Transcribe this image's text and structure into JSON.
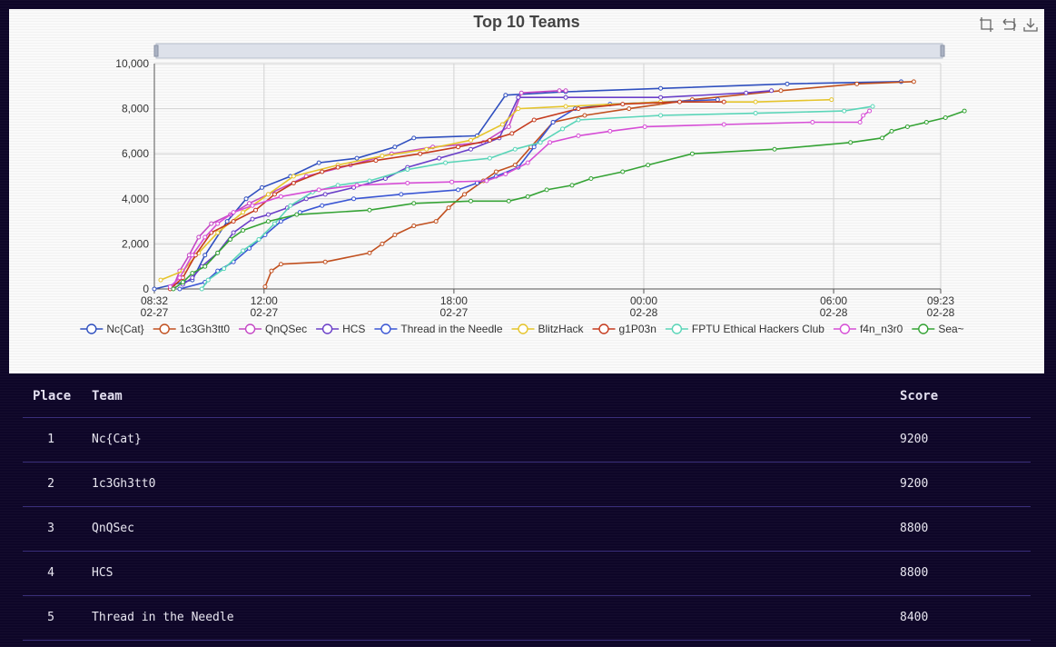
{
  "chart_data": {
    "type": "line",
    "title": "Top 10 Teams",
    "ylim": [
      0,
      10000
    ],
    "y_ticks": [
      "10,000",
      "8,000",
      "6,000",
      "4,000",
      "2,000",
      "0"
    ],
    "x_ticks": [
      {
        "time": "08:32",
        "date": "02-27"
      },
      {
        "time": "12:00",
        "date": "02-27"
      },
      {
        "time": "18:00",
        "date": "02-27"
      },
      {
        "time": "00:00",
        "date": "02-28"
      },
      {
        "time": "06:00",
        "date": "02-28"
      },
      {
        "time": "09:23",
        "date": "02-28"
      }
    ],
    "legend_position": "bottom",
    "series": [
      {
        "name": "Nc{Cat}",
        "color": "#2f4fbf",
        "values": [
          [
            0,
            0
          ],
          [
            1.2,
            400
          ],
          [
            1.6,
            1500
          ],
          [
            2.3,
            3000
          ],
          [
            2.9,
            4000
          ],
          [
            3.4,
            4500
          ],
          [
            4.3,
            5000
          ],
          [
            5.2,
            5600
          ],
          [
            6.4,
            5800
          ],
          [
            7.6,
            6300
          ],
          [
            8.2,
            6700
          ],
          [
            10.2,
            6800
          ],
          [
            11.1,
            8600
          ],
          [
            13,
            8750
          ],
          [
            16,
            8900
          ],
          [
            20,
            9100
          ],
          [
            23.6,
            9200
          ]
        ]
      },
      {
        "name": "1c3Gh3tt0",
        "color": "#c1501f",
        "values": [
          [
            3.5,
            100
          ],
          [
            3.7,
            800
          ],
          [
            4.0,
            1100
          ],
          [
            5.4,
            1200
          ],
          [
            6.8,
            1600
          ],
          [
            7.2,
            2000
          ],
          [
            7.6,
            2400
          ],
          [
            8.2,
            2800
          ],
          [
            8.9,
            3000
          ],
          [
            9.3,
            3600
          ],
          [
            9.8,
            4200
          ],
          [
            10.4,
            4800
          ],
          [
            10.8,
            5200
          ],
          [
            11.4,
            5500
          ],
          [
            11.9,
            6300
          ],
          [
            12.6,
            7400
          ],
          [
            13.6,
            7700
          ],
          [
            15,
            8000
          ],
          [
            17,
            8400
          ],
          [
            19.8,
            8800
          ],
          [
            22.2,
            9100
          ],
          [
            24.0,
            9200
          ]
        ]
      },
      {
        "name": "QnQSec",
        "color": "#c548c5",
        "values": [
          [
            0.6,
            100
          ],
          [
            0.8,
            800
          ],
          [
            1.1,
            1500
          ],
          [
            1.4,
            2300
          ],
          [
            1.8,
            2900
          ],
          [
            2.4,
            3300
          ],
          [
            3.0,
            3800
          ],
          [
            3.6,
            4200
          ],
          [
            4.8,
            5000
          ],
          [
            6.2,
            5500
          ],
          [
            7.5,
            6000
          ],
          [
            8.8,
            6300
          ],
          [
            10.4,
            6500
          ],
          [
            11.2,
            7200
          ],
          [
            11.6,
            8700
          ],
          [
            12.8,
            8800
          ],
          [
            13.0,
            8800
          ]
        ]
      },
      {
        "name": "HCS",
        "color": "#6a3fc8",
        "values": [
          [
            0.9,
            200
          ],
          [
            1.2,
            500
          ],
          [
            1.5,
            1000
          ],
          [
            2.0,
            1600
          ],
          [
            2.5,
            2500
          ],
          [
            3.1,
            3100
          ],
          [
            3.6,
            3300
          ],
          [
            4.2,
            3600
          ],
          [
            4.8,
            4000
          ],
          [
            5.4,
            4200
          ],
          [
            6.3,
            4500
          ],
          [
            7.3,
            4900
          ],
          [
            8.0,
            5400
          ],
          [
            9.0,
            5800
          ],
          [
            10.0,
            6200
          ],
          [
            10.9,
            6700
          ],
          [
            11.5,
            8500
          ],
          [
            13.0,
            8500
          ],
          [
            16,
            8500
          ],
          [
            18.7,
            8700
          ],
          [
            19.5,
            8800
          ]
        ]
      },
      {
        "name": "Thread in the Needle",
        "color": "#3a56d4",
        "values": [
          [
            0.8,
            0
          ],
          [
            1.6,
            300
          ],
          [
            2.0,
            800
          ],
          [
            2.5,
            1200
          ],
          [
            3.0,
            1800
          ],
          [
            3.5,
            2400
          ],
          [
            4.0,
            3000
          ],
          [
            4.6,
            3400
          ],
          [
            5.3,
            3700
          ],
          [
            6.3,
            4000
          ],
          [
            7.8,
            4200
          ],
          [
            9.6,
            4400
          ],
          [
            10.2,
            4700
          ],
          [
            10.8,
            5000
          ],
          [
            11.5,
            5400
          ],
          [
            12.0,
            6300
          ],
          [
            12.6,
            7400
          ],
          [
            13.3,
            8000
          ],
          [
            14.4,
            8200
          ],
          [
            17.8,
            8400
          ]
        ]
      },
      {
        "name": "BlitzHack",
        "color": "#e5c42b",
        "values": [
          [
            0.2,
            400
          ],
          [
            0.9,
            800
          ],
          [
            1.4,
            1600
          ],
          [
            2.0,
            2500
          ],
          [
            2.8,
            3400
          ],
          [
            3.6,
            4200
          ],
          [
            4.4,
            5000
          ],
          [
            5.8,
            5500
          ],
          [
            7.2,
            5900
          ],
          [
            8.6,
            6200
          ],
          [
            10.0,
            6600
          ],
          [
            11.0,
            7300
          ],
          [
            11.5,
            8000
          ],
          [
            13.0,
            8100
          ],
          [
            16.0,
            8300
          ],
          [
            19.0,
            8300
          ],
          [
            21.4,
            8400
          ]
        ]
      },
      {
        "name": "g1P03n",
        "color": "#c53b1e",
        "values": [
          [
            0.5,
            0
          ],
          [
            0.9,
            500
          ],
          [
            1.3,
            1500
          ],
          [
            1.8,
            2500
          ],
          [
            2.5,
            3000
          ],
          [
            3.2,
            3500
          ],
          [
            3.8,
            4200
          ],
          [
            4.4,
            4700
          ],
          [
            5.3,
            5200
          ],
          [
            5.8,
            5400
          ],
          [
            7.0,
            5700
          ],
          [
            8.4,
            6000
          ],
          [
            9.6,
            6300
          ],
          [
            10.6,
            6600
          ],
          [
            11.3,
            6900
          ],
          [
            12.0,
            7500
          ],
          [
            13.4,
            8000
          ],
          [
            14.8,
            8200
          ],
          [
            16.6,
            8300
          ],
          [
            18.0,
            8300
          ]
        ]
      },
      {
        "name": "FPTU Ethical Hackers Club",
        "color": "#5ad5b8",
        "values": [
          [
            1.5,
            0
          ],
          [
            1.7,
            400
          ],
          [
            2.2,
            900
          ],
          [
            2.8,
            1700
          ],
          [
            3.3,
            2200
          ],
          [
            3.8,
            2900
          ],
          [
            4.3,
            3700
          ],
          [
            5.0,
            4300
          ],
          [
            5.8,
            4600
          ],
          [
            6.8,
            4800
          ],
          [
            8.0,
            5300
          ],
          [
            9.2,
            5600
          ],
          [
            10.6,
            5800
          ],
          [
            11.4,
            6200
          ],
          [
            12.2,
            6500
          ],
          [
            12.9,
            7100
          ],
          [
            13.4,
            7500
          ],
          [
            16,
            7700
          ],
          [
            19,
            7800
          ],
          [
            21.8,
            7900
          ],
          [
            22.7,
            8100
          ]
        ]
      },
      {
        "name": "f4n_n3r0",
        "color": "#d64ed6",
        "values": [
          [
            0.5,
            100
          ],
          [
            0.8,
            500
          ],
          [
            1.2,
            1500
          ],
          [
            1.6,
            2300
          ],
          [
            2.0,
            2900
          ],
          [
            2.5,
            3400
          ],
          [
            3.1,
            3700
          ],
          [
            4.0,
            4100
          ],
          [
            5.2,
            4400
          ],
          [
            6.4,
            4600
          ],
          [
            8.0,
            4700
          ],
          [
            9.4,
            4750
          ],
          [
            10.5,
            4800
          ],
          [
            11.1,
            5100
          ],
          [
            11.8,
            5600
          ],
          [
            12.5,
            6500
          ],
          [
            13.4,
            6800
          ],
          [
            14.4,
            7000
          ],
          [
            15.5,
            7200
          ],
          [
            18,
            7300
          ],
          [
            20.8,
            7400
          ],
          [
            22.3,
            7400
          ],
          [
            22.4,
            7700
          ],
          [
            22.6,
            7900
          ]
        ]
      },
      {
        "name": "Sea~",
        "color": "#35a335",
        "values": [
          [
            0.6,
            0
          ],
          [
            0.9,
            300
          ],
          [
            1.2,
            700
          ],
          [
            1.6,
            1000
          ],
          [
            2.0,
            1600
          ],
          [
            2.4,
            2200
          ],
          [
            2.8,
            2600
          ],
          [
            3.6,
            3000
          ],
          [
            4.5,
            3300
          ],
          [
            6.8,
            3500
          ],
          [
            8.2,
            3800
          ],
          [
            10.0,
            3900
          ],
          [
            11.2,
            3900
          ],
          [
            11.8,
            4100
          ],
          [
            12.4,
            4400
          ],
          [
            13.2,
            4600
          ],
          [
            13.8,
            4900
          ],
          [
            14.8,
            5200
          ],
          [
            15.6,
            5500
          ],
          [
            17.0,
            6000
          ],
          [
            19.6,
            6200
          ],
          [
            22.0,
            6500
          ],
          [
            23.0,
            6700
          ],
          [
            23.3,
            7000
          ],
          [
            23.8,
            7200
          ],
          [
            24.4,
            7400
          ],
          [
            25.0,
            7600
          ],
          [
            25.6,
            7900
          ]
        ]
      }
    ]
  },
  "toolbox": {
    "icons": [
      "zoom-icon",
      "restore-icon",
      "download-icon"
    ]
  },
  "table": {
    "headers": {
      "place": "Place",
      "team": "Team",
      "score": "Score"
    },
    "rows": [
      {
        "place": "1",
        "team": "Nc{Cat}",
        "score": "9200"
      },
      {
        "place": "2",
        "team": "1c3Gh3tt0",
        "score": "9200"
      },
      {
        "place": "3",
        "team": "QnQSec",
        "score": "8800"
      },
      {
        "place": "4",
        "team": "HCS",
        "score": "8800"
      },
      {
        "place": "5",
        "team": "Thread in the Needle",
        "score": "8400"
      }
    ]
  }
}
